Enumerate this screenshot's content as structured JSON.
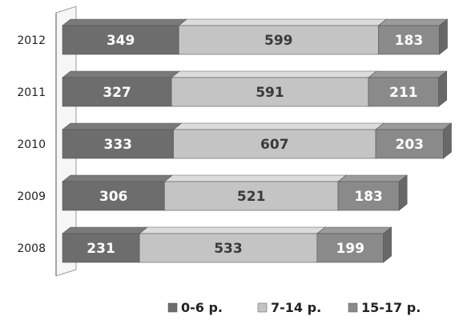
{
  "chart_data": {
    "type": "bar",
    "orientation": "horizontal",
    "stacked": true,
    "three_d": true,
    "categories": [
      "2012",
      "2011",
      "2010",
      "2009",
      "2008"
    ],
    "series": [
      {
        "name": "0-6 р.",
        "values": [
          349,
          327,
          333,
          306,
          231
        ],
        "color": "#6d6d6d",
        "label_color": "#ffffff"
      },
      {
        "name": "7-14 р.",
        "values": [
          599,
          591,
          607,
          521,
          533
        ],
        "color": "#c4c4c4",
        "label_color": "#3a3a3a"
      },
      {
        "name": "15-17 р.",
        "values": [
          183,
          211,
          203,
          183,
          199
        ],
        "color": "#8a8a8a",
        "label_color": "#ffffff"
      }
    ],
    "title": "",
    "xlabel": "",
    "ylabel": "",
    "xlim": [
      0,
      1150
    ],
    "grid": false,
    "legend_position": "bottom"
  }
}
